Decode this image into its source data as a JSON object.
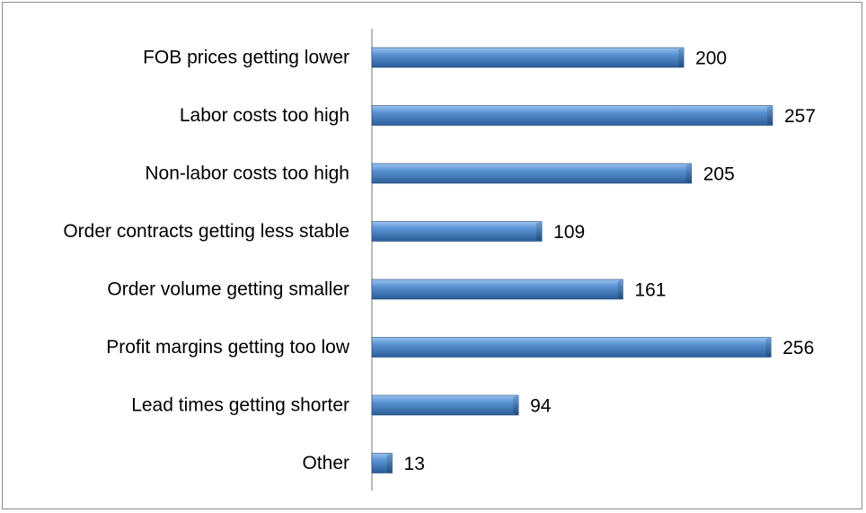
{
  "chart_data": {
    "type": "bar",
    "orientation": "horizontal",
    "categories": [
      "FOB prices getting lower",
      "Labor costs too high",
      "Non-labor costs too high",
      "Order contracts getting less stable",
      "Order volume getting smaller",
      "Profit margins getting too low",
      "Lead times getting shorter",
      "Other"
    ],
    "values": [
      200,
      257,
      205,
      109,
      161,
      256,
      94,
      13
    ],
    "data_labels": [
      "200",
      "257",
      "205",
      "109",
      "161",
      "256",
      "94",
      "13"
    ],
    "title": "",
    "xlabel": "",
    "ylabel": "",
    "xlim": [
      0,
      257
    ],
    "grid": false,
    "legend": "none",
    "colors": {
      "bar_light": "#9cc3ee",
      "bar_mid": "#4f86c6",
      "bar_dark": "#2b5d97",
      "bar_edge": "#1f4a7c",
      "axis": "#8c8c8c",
      "frame": "#8c8c8c"
    }
  }
}
